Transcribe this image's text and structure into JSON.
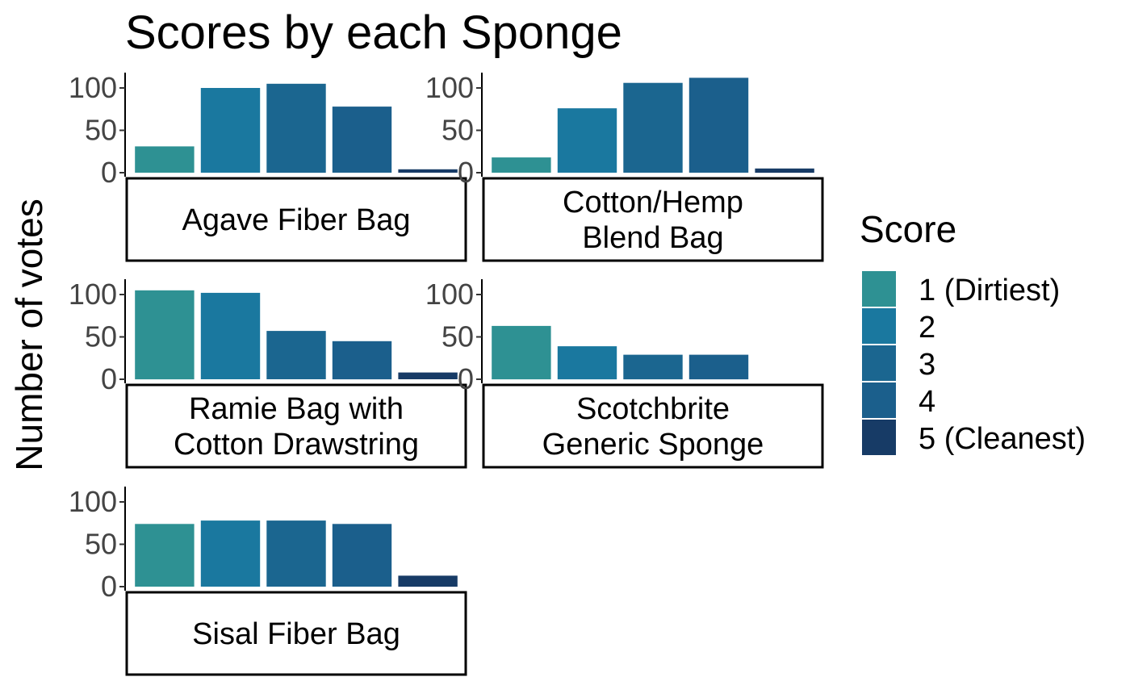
{
  "chart_data": {
    "type": "bar",
    "title": "Scores by each Sponge",
    "ylabel": "Number of votes",
    "xlabel": "",
    "ylim": [
      0,
      115
    ],
    "yticks": [
      0,
      50,
      100
    ],
    "grid": false,
    "legend_position": "right",
    "legend": {
      "title": "Score",
      "entries": [
        "1 (Dirtiest)",
        "2",
        "3",
        "4",
        "5 (Cleanest)"
      ],
      "colors": [
        "#2E9193",
        "#1A789F",
        "#1B6690",
        "#1B5F8C",
        "#173B66"
      ]
    },
    "categories": [
      "1 (Dirtiest)",
      "2",
      "3",
      "4",
      "5 (Cleanest)"
    ],
    "panels": [
      {
        "name": "Agave Fiber Bag",
        "strip": [
          "Agave Fiber Bag"
        ],
        "values": [
          31,
          100,
          105,
          78,
          4
        ]
      },
      {
        "name": "Cotton/Hemp Blend Bag",
        "strip": [
          "Cotton/Hemp",
          "Blend Bag"
        ],
        "values": [
          18,
          76,
          106,
          112,
          5
        ]
      },
      {
        "name": "Ramie Bag with Cotton Drawstring",
        "strip": [
          "Ramie Bag with",
          "Cotton Drawstring"
        ],
        "values": [
          105,
          102,
          57,
          45,
          8
        ]
      },
      {
        "name": "Scotchbrite Generic Sponge",
        "strip": [
          "Scotchbrite",
          "Generic Sponge"
        ],
        "values": [
          63,
          39,
          29,
          29,
          0
        ]
      },
      {
        "name": "Sisal Fiber Bag",
        "strip": [
          "Sisal Fiber Bag"
        ],
        "values": [
          74,
          78,
          78,
          74,
          13
        ]
      }
    ]
  }
}
